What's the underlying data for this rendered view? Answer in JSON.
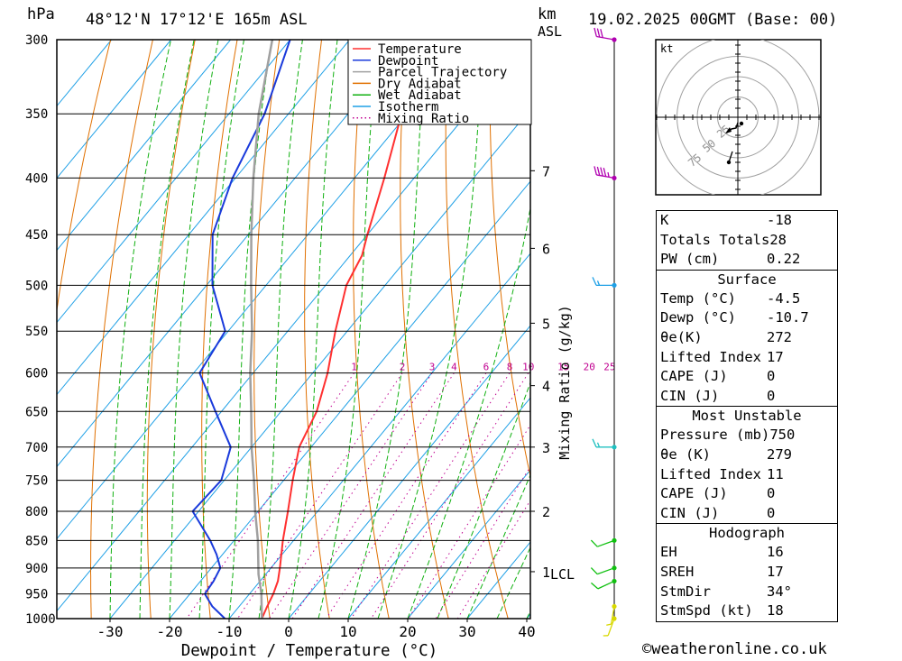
{
  "header": {
    "hpa_unit": "hPa",
    "location": "48°12'N 17°12'E 165m ASL",
    "km_unit": "km",
    "asl": "ASL",
    "datetime": "19.02.2025 00GMT (Base: 00)"
  },
  "footer": {
    "copyright": "©weatheronline.co.uk"
  },
  "colors": {
    "temperature": "#ff3030",
    "dewpoint": "#1a3adb",
    "parcel": "#a0a0a0",
    "dry_adiabat": "#e07000",
    "wet_adiabat": "#10b010",
    "isotherm": "#1ea0e6",
    "mixing_ratio": "#c00090"
  },
  "chart_data": {
    "type": "line",
    "xlabel": "Dewpoint / Temperature (°C)",
    "ylabel_left": "hPa",
    "mixing_axis_label": "Mixing Ratio (g/kg)",
    "x_ticks": [
      "-30",
      "-20",
      "-10",
      "0",
      "10",
      "20",
      "30",
      "40"
    ],
    "pressure_ticks": [
      "300",
      "350",
      "400",
      "450",
      "500",
      "550",
      "600",
      "650",
      "700",
      "750",
      "800",
      "850",
      "900",
      "950",
      "1000"
    ],
    "km_ticks": [
      {
        "label": "7",
        "p": 394
      },
      {
        "label": "6",
        "p": 463
      },
      {
        "label": "5",
        "p": 541
      },
      {
        "label": "4",
        "p": 616
      },
      {
        "label": "3",
        "p": 700
      },
      {
        "label": "2",
        "p": 800
      },
      {
        "label": "1",
        "p": 907
      }
    ],
    "lcl_label": "LCL",
    "lcl_pressure": 912,
    "mixing_ratio_labels": [
      "1",
      "2",
      "3",
      "4",
      "6",
      "8",
      "10",
      "15",
      "20",
      "25"
    ],
    "legend": [
      "Temperature",
      "Dewpoint",
      "Parcel Trajectory",
      "Dry Adiabat",
      "Wet Adiabat",
      "Isotherm",
      "Mixing Ratio"
    ],
    "series": [
      {
        "name": "Temperature",
        "pressure": [
          1000,
          975,
          950,
          925,
          900,
          850,
          800,
          750,
          700,
          650,
          600,
          550,
          500,
          470,
          450,
          400,
          350,
          300
        ],
        "temp": [
          -4.5,
          -5.3,
          -6.0,
          -7.0,
          -8.5,
          -11.8,
          -15.0,
          -18.5,
          -22.0,
          -24.0,
          -27.5,
          -32.0,
          -36.5,
          -38.0,
          -40.0,
          -45.0,
          -51.0,
          -54.0
        ]
      },
      {
        "name": "Dewpoint",
        "pressure": [
          1000,
          975,
          950,
          925,
          900,
          875,
          850,
          800,
          750,
          700,
          650,
          600,
          550,
          500,
          450,
          400,
          350,
          300
        ],
        "temp": [
          -10.7,
          -14.5,
          -17.5,
          -17.8,
          -18.5,
          -21.0,
          -24.0,
          -31.0,
          -30.5,
          -33.5,
          -41.0,
          -49.0,
          -50.5,
          -59.0,
          -66.0,
          -70.5,
          -74.0,
          -80.0
        ]
      },
      {
        "name": "Parcel Trajectory",
        "pressure": [
          1000,
          950,
          912,
          850,
          800,
          750,
          700,
          650,
          600,
          550,
          500,
          450,
          400,
          350,
          300
        ],
        "temp": [
          -4.5,
          -8.0,
          -11.2,
          -16.0,
          -20.5,
          -25.0,
          -30.0,
          -35.0,
          -40.5,
          -46.0,
          -52.5,
          -59.5,
          -67.0,
          -75.0,
          -83.0
        ]
      }
    ],
    "wind_barbs": [
      {
        "p": 1000,
        "dir": 200,
        "speed": 5,
        "color": "#d8d800"
      },
      {
        "p": 975,
        "dir": 190,
        "speed": 5,
        "color": "#d8d800"
      },
      {
        "p": 925,
        "dir": 245,
        "speed": 10,
        "color": "#10c010"
      },
      {
        "p": 900,
        "dir": 250,
        "speed": 10,
        "color": "#10c010"
      },
      {
        "p": 850,
        "dir": 250,
        "speed": 10,
        "color": "#10c010"
      },
      {
        "p": 700,
        "dir": 270,
        "speed": 15,
        "color": "#20c0c0"
      },
      {
        "p": 500,
        "dir": 270,
        "speed": 15,
        "color": "#1ea0e6"
      },
      {
        "p": 400,
        "dir": 280,
        "speed": 45,
        "color": "#b000b0"
      },
      {
        "p": 300,
        "dir": 280,
        "speed": 30,
        "color": "#b000b0"
      }
    ],
    "hodograph": {
      "unit_label": "kt",
      "rings": [
        "25",
        "50",
        "75"
      ]
    }
  },
  "indices": [
    {
      "label": "K",
      "value": "-18"
    },
    {
      "label": "Totals Totals",
      "value": "28"
    },
    {
      "label": "PW (cm)",
      "value": "0.22"
    }
  ],
  "surface": {
    "title": "Surface",
    "rows": [
      {
        "label": "Temp (°C)",
        "value": "-4.5"
      },
      {
        "label": "Dewp (°C)",
        "value": "-10.7"
      },
      {
        "label": "θe(K)",
        "value": "272"
      },
      {
        "label": "Lifted Index",
        "value": "17"
      },
      {
        "label": "CAPE (J)",
        "value": "0"
      },
      {
        "label": "CIN (J)",
        "value": "0"
      }
    ]
  },
  "most_unstable": {
    "title": "Most Unstable",
    "rows": [
      {
        "label": "Pressure (mb)",
        "value": "750"
      },
      {
        "label": "θe (K)",
        "value": "279"
      },
      {
        "label": "Lifted Index",
        "value": "11"
      },
      {
        "label": "CAPE (J)",
        "value": "0"
      },
      {
        "label": "CIN (J)",
        "value": "0"
      }
    ]
  },
  "hodograph_table": {
    "title": "Hodograph",
    "rows": [
      {
        "label": "EH",
        "value": "16"
      },
      {
        "label": "SREH",
        "value": "17"
      },
      {
        "label": "StmDir",
        "value": "34°"
      },
      {
        "label": "StmSpd (kt)",
        "value": "18"
      }
    ]
  }
}
